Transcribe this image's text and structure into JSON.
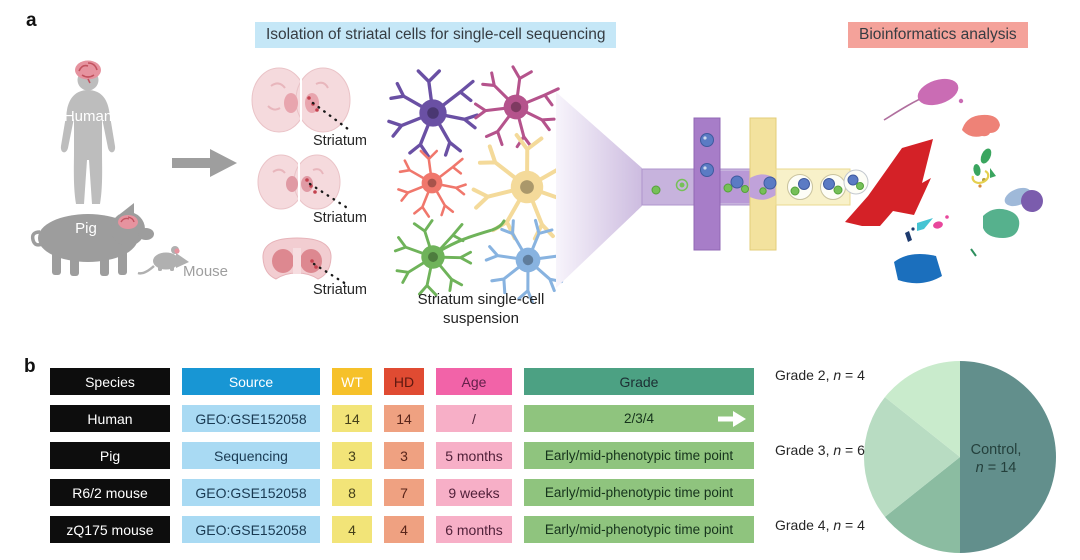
{
  "panel_a": {
    "label": "a",
    "banner_isolation": "Isolation of striatal cells for single-cell sequencing",
    "banner_bioinformatics": "Bioinformatics analysis",
    "species": {
      "human": "Human",
      "pig": "Pig",
      "mouse": "Mouse"
    },
    "striatum_labels": [
      "Striatum",
      "Striatum",
      "Striatum"
    ],
    "suspension_caption": "Striatum single-cell suspension"
  },
  "panel_b": {
    "label": "b",
    "table": {
      "headers": [
        "Species",
        "Source",
        "WT",
        "HD",
        "Age",
        "Grade"
      ],
      "rows": [
        {
          "species": "Human",
          "source": "GEO:GSE152058",
          "wt": "14",
          "hd": "14",
          "age": "/",
          "grade": "2/3/4"
        },
        {
          "species": "Pig",
          "source": "Sequencing",
          "wt": "3",
          "hd": "3",
          "age": "5 months",
          "grade": "Early/mid-phenotypic time point"
        },
        {
          "species": "R6/2 mouse",
          "source": "GEO:GSE152058",
          "wt": "8",
          "hd": "7",
          "age": "9 weeks",
          "grade": "Early/mid-phenotypic time point"
        },
        {
          "species": "zQ175 mouse",
          "source": "GEO:GSE152058",
          "wt": "4",
          "hd": "4",
          "age": "6 months",
          "grade": "Early/mid-phenotypic time point"
        }
      ]
    },
    "pie_labels": {
      "grade2": {
        "prefix": "Grade 2, ",
        "n": "n",
        "suffix": " = 4"
      },
      "grade3": {
        "prefix": "Grade 3, ",
        "n": "n",
        "suffix": " = 6"
      },
      "grade4": {
        "prefix": "Grade 4, ",
        "n": "n",
        "suffix": " = 4"
      },
      "control": {
        "line1": "Control,",
        "n": "n",
        "suffix": " = 14"
      }
    }
  },
  "chart_data": {
    "type": "pie",
    "slices": [
      {
        "label": "Control",
        "n": 14,
        "color": "#628f8c"
      },
      {
        "label": "Grade 4",
        "n": 4,
        "color": "#8bbca1"
      },
      {
        "label": "Grade 3",
        "n": 6,
        "color": "#b8dcc2"
      },
      {
        "label": "Grade 2",
        "n": 4,
        "color": "#c9ebcc"
      }
    ],
    "total": 28,
    "start_angle_deg": 0,
    "direction": "clockwise",
    "labels_position": "left"
  },
  "icons": {
    "flow_arrow": "arrow-right",
    "grade_arrow": "arrow-right"
  },
  "colors": {
    "banner_isolation_bg": "#c5e7f7",
    "banner_bioinformatics_bg": "#f4a29a",
    "header_species_bg": "#0d0d0d",
    "header_source_bg": "#1896d4",
    "header_wt_bg": "#f6c12a",
    "header_hd_bg": "#e04b32",
    "header_age_bg": "#f263a8",
    "header_grade_bg": "#4ca183",
    "cell_species_bg": "#0d0d0d",
    "cell_source_bg": "#a9daf3",
    "cell_wt_bg": "#f2e478",
    "cell_hd_bg": "#efa181",
    "cell_age_bg": "#f7afc7",
    "cell_grade_bg": "#8fc47e"
  }
}
